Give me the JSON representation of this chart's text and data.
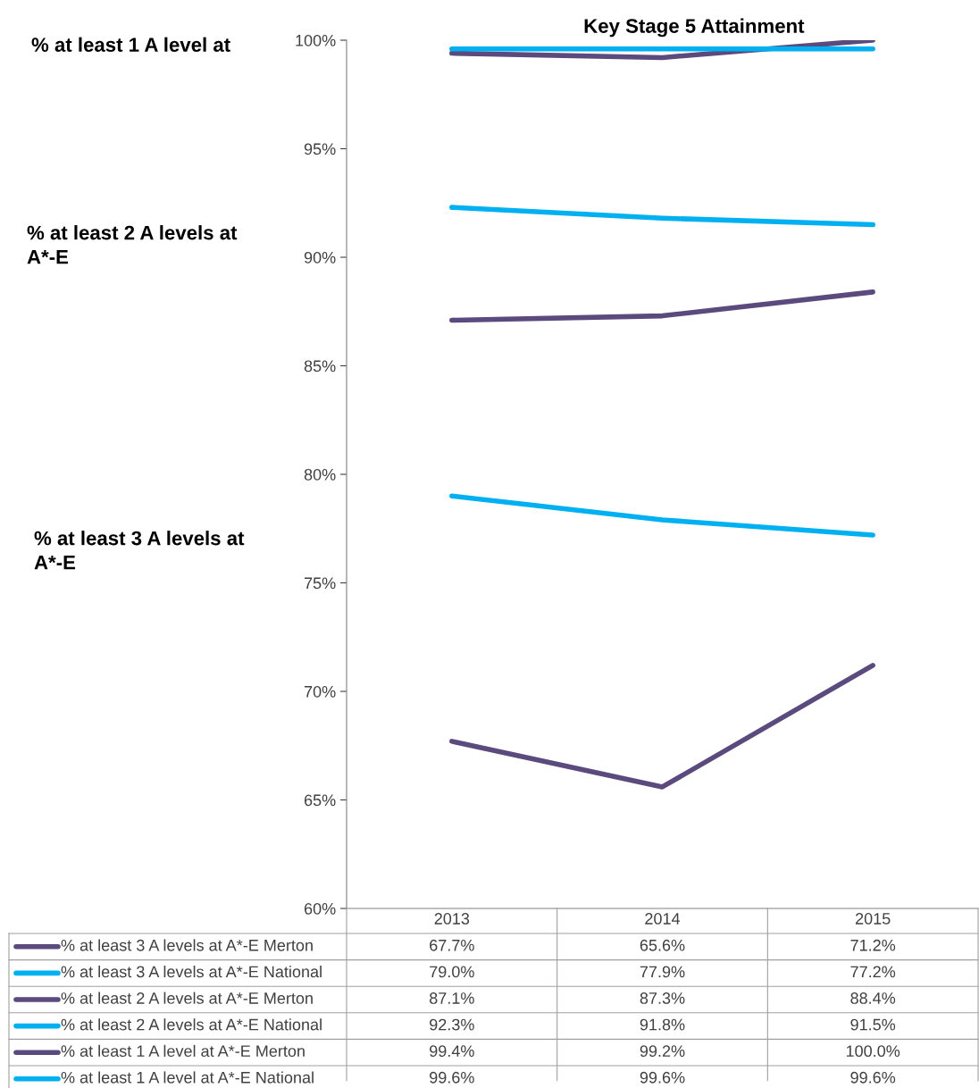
{
  "chart_data": {
    "type": "line",
    "title": "Key Stage 5 Attainment",
    "categories": [
      "2013",
      "2014",
      "2015"
    ],
    "series": [
      {
        "name": "% at least 3 A levels at A*-E Merton",
        "color": "#5b4a7e",
        "values": [
          67.7,
          65.6,
          71.2
        ],
        "value_labels": [
          "67.7%",
          "65.6%",
          "71.2%"
        ]
      },
      {
        "name": "% at least 3 A levels at A*-E National",
        "color": "#00b0f0",
        "values": [
          79.0,
          77.9,
          77.2
        ],
        "value_labels": [
          "79.0%",
          "77.9%",
          "77.2%"
        ]
      },
      {
        "name": "% at least 2 A levels at A*-E Merton",
        "color": "#5b4a7e",
        "values": [
          87.1,
          87.3,
          88.4
        ],
        "value_labels": [
          "87.1%",
          "87.3%",
          "88.4%"
        ]
      },
      {
        "name": "% at least 2 A levels at A*-E National",
        "color": "#00b0f0",
        "values": [
          92.3,
          91.8,
          91.5
        ],
        "value_labels": [
          "92.3%",
          "91.8%",
          "91.5%"
        ]
      },
      {
        "name": "% at least 1 A level at A*-E Merton",
        "color": "#5b4a7e",
        "values": [
          99.4,
          99.2,
          100.0
        ],
        "value_labels": [
          "99.4%",
          "99.2%",
          "100.0%"
        ]
      },
      {
        "name": "% at least 1 A level at A*-E National",
        "color": "#00b0f0",
        "values": [
          99.6,
          99.6,
          99.6
        ],
        "value_labels": [
          "99.6%",
          "99.6%",
          "99.6%"
        ]
      }
    ],
    "ylim": [
      60,
      100
    ],
    "yticks": [
      {
        "value": 60,
        "label": "60%"
      },
      {
        "value": 65,
        "label": "65%"
      },
      {
        "value": 70,
        "label": "70%"
      },
      {
        "value": 75,
        "label": "75%"
      },
      {
        "value": 80,
        "label": "80%"
      },
      {
        "value": 85,
        "label": "85%"
      },
      {
        "value": 90,
        "label": "90%"
      },
      {
        "value": 95,
        "label": "95%"
      },
      {
        "value": 100,
        "label": "100%"
      }
    ],
    "legend": "bottom",
    "grid": false,
    "marker": "none",
    "line_style": "solid",
    "annotations": [
      "% at least 1 A level at",
      "% at least 2 A levels at A*-E",
      "% at least 3 A levels at A*-E"
    ]
  }
}
